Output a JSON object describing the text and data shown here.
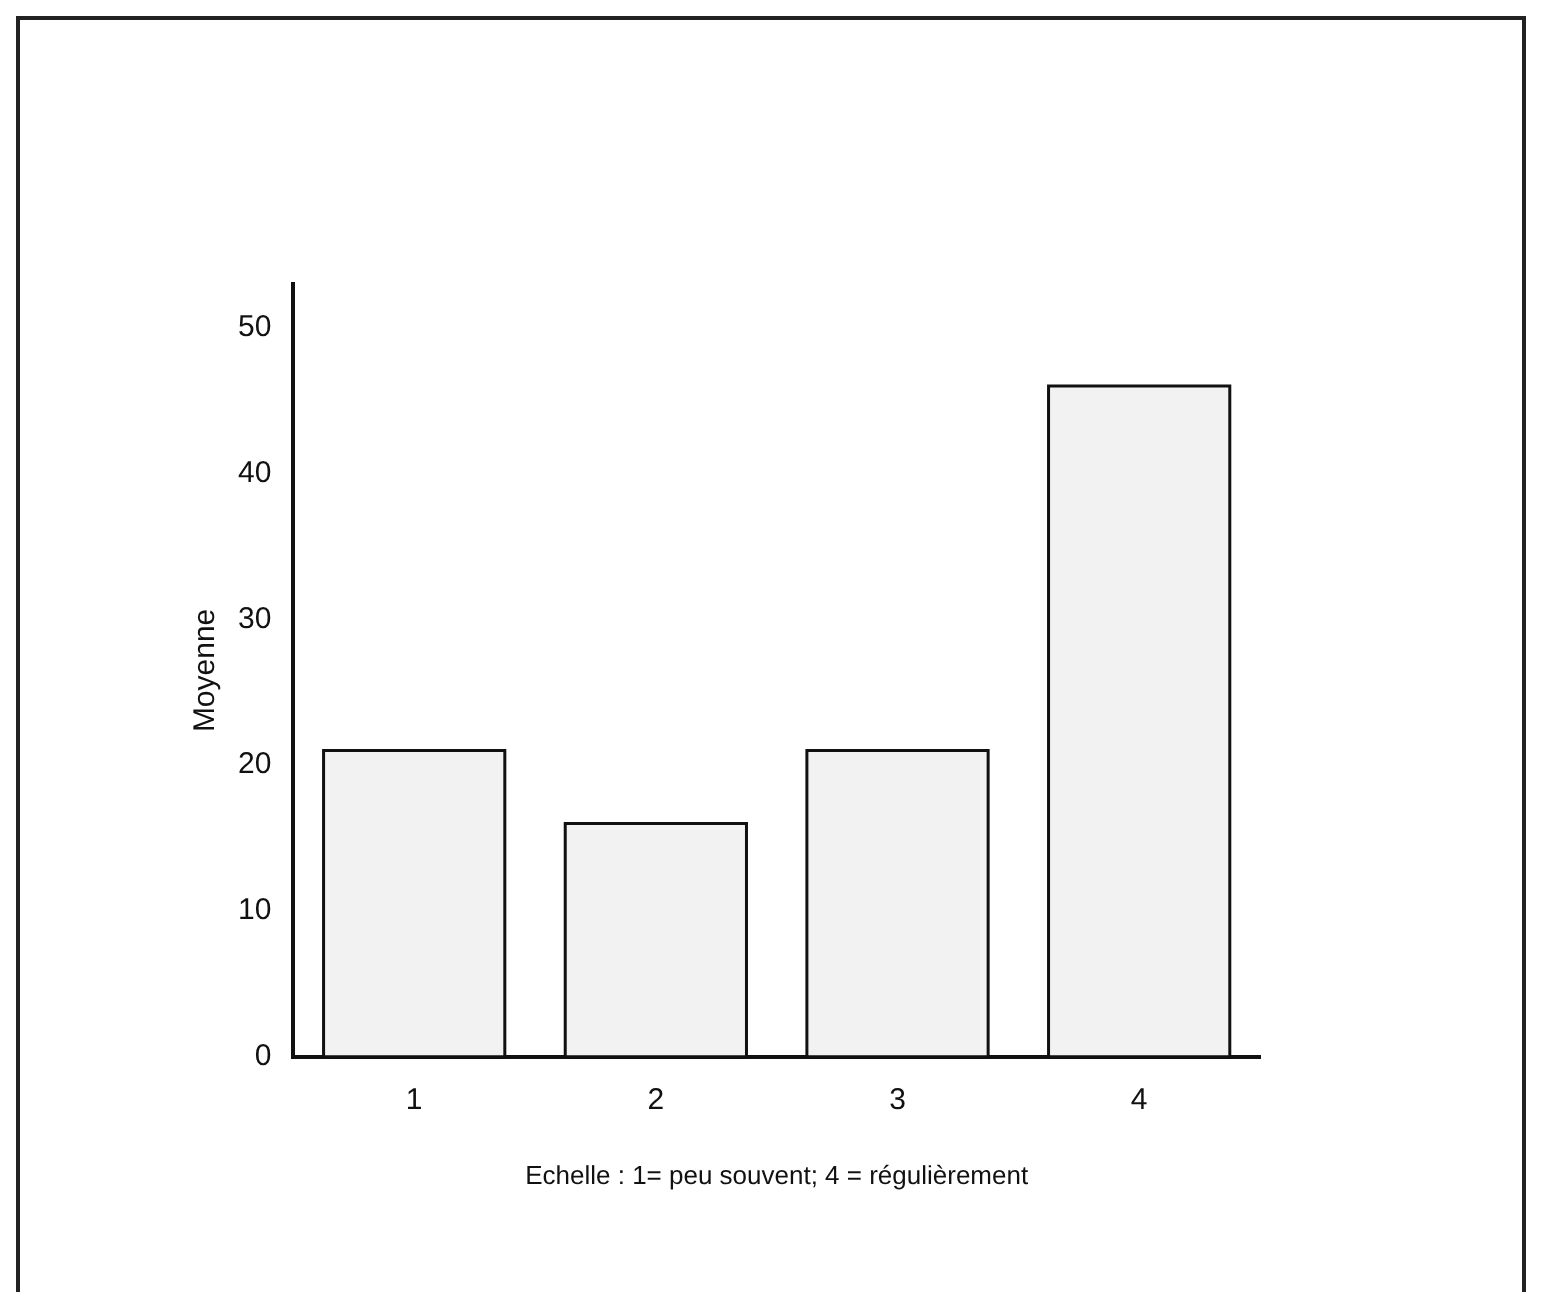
{
  "chart_data": {
    "type": "bar",
    "xlabel": "Echelle : 1= peu souvent; 4 = régulièrement",
    "ylabel": "Moyenne",
    "categories": [
      "1",
      "2",
      "3",
      "4"
    ],
    "values": [
      21,
      16,
      21,
      46
    ],
    "color": "#f2f2f2",
    "ylim": [
      0,
      53
    ],
    "yticks": [
      0,
      10,
      20,
      30,
      40,
      50
    ],
    "grid": false,
    "legend": false
  }
}
